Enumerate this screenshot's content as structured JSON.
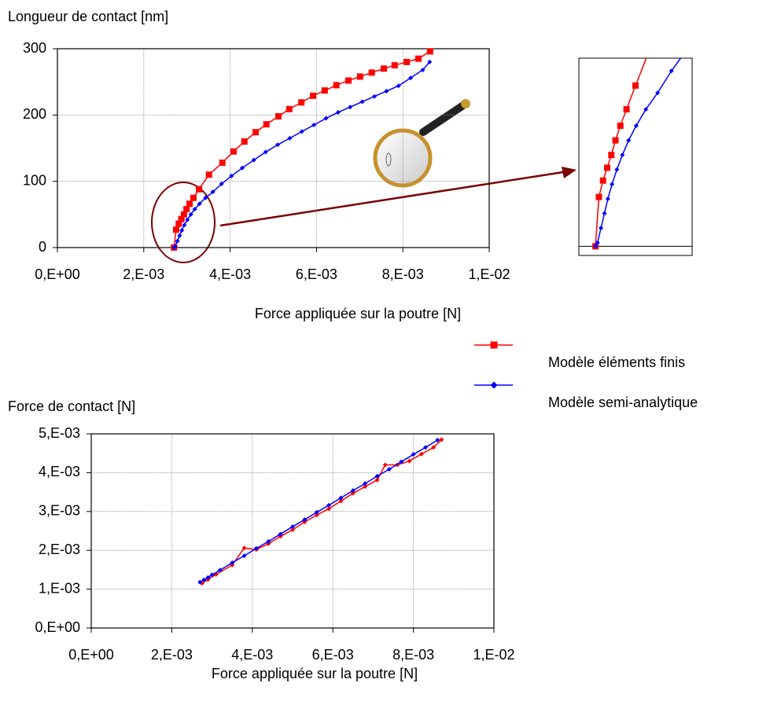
{
  "chart_data": [
    {
      "type": "line",
      "ylabel": "Longueur de contact [nm]",
      "xlabel": "Force appliquée sur la poutre [N]",
      "xlim": [
        0,
        0.01
      ],
      "xticks": [
        {
          "value": 0,
          "label": "0,E+00"
        },
        {
          "value": 0.002,
          "label": "2,E-03"
        },
        {
          "value": 0.004,
          "label": "4,E-03"
        },
        {
          "value": 0.006,
          "label": "6,E-03"
        },
        {
          "value": 0.008,
          "label": "8,E-03"
        },
        {
          "value": 0.01,
          "label": "1,E-02"
        }
      ],
      "ylim": [
        0,
        300
      ],
      "yticks": [
        0,
        100,
        200,
        300
      ],
      "grid": true,
      "series": [
        {
          "name": "Modèle éléments finis",
          "color": "#ff0000",
          "marker": "square",
          "x": [
            0.0027,
            0.00275,
            0.00281,
            0.00287,
            0.00293,
            0.00299,
            0.00306,
            0.00315,
            0.00328,
            0.00351,
            0.00382,
            0.00408,
            0.00433,
            0.00459,
            0.00484,
            0.00512,
            0.00537,
            0.00565,
            0.00592,
            0.00619,
            0.00646,
            0.00674,
            0.00701,
            0.00728,
            0.00756,
            0.00781,
            0.00809,
            0.00836,
            0.00863
          ],
          "values": [
            0,
            27,
            36,
            43,
            50,
            58,
            66,
            75,
            88,
            110,
            128,
            145,
            160,
            174,
            186,
            198,
            209,
            219,
            229,
            237,
            245,
            252,
            258,
            264,
            270,
            275,
            280,
            285,
            296
          ]
        },
        {
          "name": "Modèle semi-analytique",
          "color": "#0000ff",
          "marker": "diamond",
          "x": [
            0.0027,
            0.00273,
            0.00278,
            0.00283,
            0.00288,
            0.00294,
            0.00301,
            0.00309,
            0.00318,
            0.00329,
            0.00343,
            0.0036,
            0.0038,
            0.00403,
            0.00428,
            0.00455,
            0.00482,
            0.0051,
            0.00538,
            0.00566,
            0.00594,
            0.00622,
            0.0065,
            0.00678,
            0.00706,
            0.00734,
            0.00762,
            0.0079,
            0.00818,
            0.00846,
            0.00862
          ],
          "values": [
            0,
            2,
            10,
            18,
            26,
            34,
            42,
            50,
            58,
            66,
            75,
            84,
            96,
            108,
            120,
            132,
            144,
            155,
            165,
            175,
            185,
            195,
            204,
            212,
            220,
            228,
            236,
            244,
            256,
            268,
            280
          ]
        }
      ]
    },
    {
      "type": "line",
      "ylabel": "Force de contact [N]",
      "xlabel": "Force appliquée sur la poutre [N]",
      "xlim": [
        0,
        0.01
      ],
      "xticks": [
        {
          "value": 0,
          "label": "0,E+00"
        },
        {
          "value": 0.002,
          "label": "2,E-03"
        },
        {
          "value": 0.004,
          "label": "4,E-03"
        },
        {
          "value": 0.006,
          "label": "6,E-03"
        },
        {
          "value": 0.008,
          "label": "8,E-03"
        },
        {
          "value": 0.01,
          "label": "1,E-02"
        }
      ],
      "ylim": [
        0,
        0.005
      ],
      "yticks": [
        {
          "value": 0,
          "label": "0,E+00"
        },
        {
          "value": 0.001,
          "label": "1,E-03"
        },
        {
          "value": 0.002,
          "label": "2,E-03"
        },
        {
          "value": 0.003,
          "label": "3,E-03"
        },
        {
          "value": 0.004,
          "label": "4,E-03"
        },
        {
          "value": 0.005,
          "label": "5,E-03"
        }
      ],
      "grid": true,
      "series": [
        {
          "color": "#ff0000",
          "marker": "diamond",
          "x": [
            0.00275,
            0.0029,
            0.0031,
            0.0035,
            0.0038,
            0.0041,
            0.0044,
            0.0047,
            0.005,
            0.0053,
            0.0056,
            0.0059,
            0.0062,
            0.0065,
            0.0068,
            0.0071,
            0.0073,
            0.0076,
            0.0079,
            0.0082,
            0.0085,
            0.0087
          ],
          "values": [
            0.00115,
            0.00125,
            0.00138,
            0.00162,
            0.00206,
            0.00202,
            0.00217,
            0.00236,
            0.00253,
            0.00273,
            0.00291,
            0.00307,
            0.00327,
            0.00347,
            0.00364,
            0.00381,
            0.0042,
            0.0042,
            0.0043,
            0.00448,
            0.00465,
            0.00485
          ]
        },
        {
          "color": "#0000ff",
          "marker": "diamond",
          "x": [
            0.0027,
            0.0028,
            0.0029,
            0.003,
            0.0032,
            0.0035,
            0.0038,
            0.0041,
            0.0044,
            0.0047,
            0.005,
            0.0053,
            0.0056,
            0.0059,
            0.0062,
            0.0065,
            0.0068,
            0.0071,
            0.0074,
            0.0077,
            0.008,
            0.0083,
            0.0086
          ],
          "values": [
            0.00118,
            0.00124,
            0.0013,
            0.00137,
            0.00149,
            0.00168,
            0.00186,
            0.00205,
            0.00223,
            0.00242,
            0.00261,
            0.00279,
            0.00298,
            0.00316,
            0.00335,
            0.00354,
            0.00372,
            0.00391,
            0.00409,
            0.00428,
            0.00447,
            0.00465,
            0.00484
          ]
        }
      ]
    },
    {
      "type": "zoom",
      "xlim": [
        0.00246,
        0.0041
      ],
      "ylim": [
        -5,
        103
      ]
    }
  ]
}
